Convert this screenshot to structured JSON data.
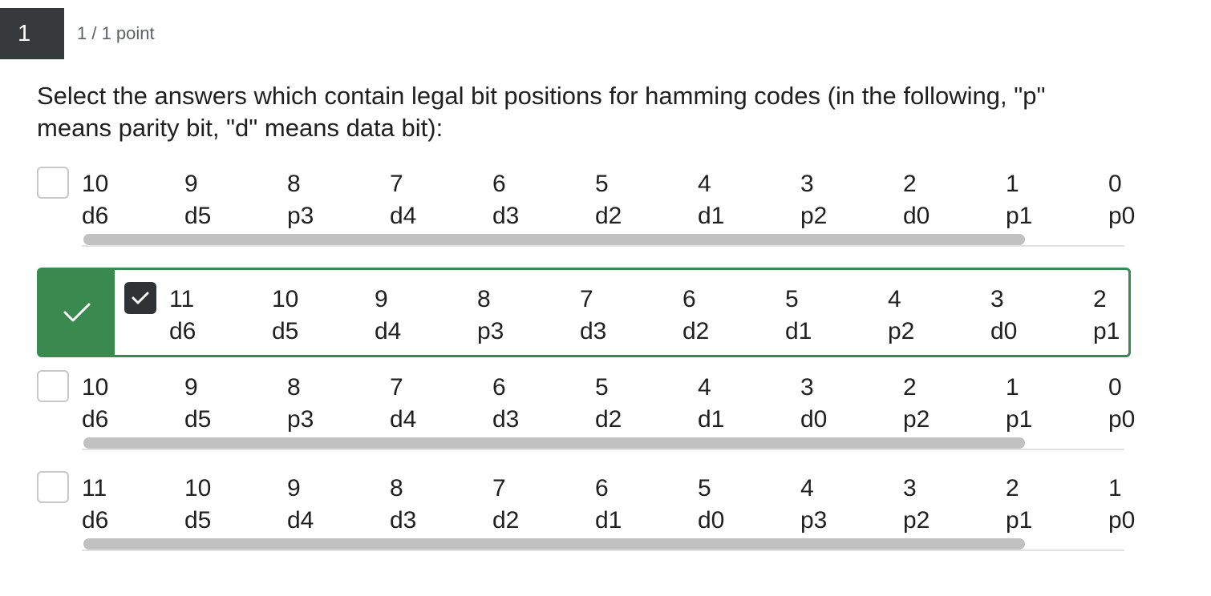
{
  "question": {
    "number": "1",
    "points": "1 / 1 point",
    "prompt": "Select the answers which contain legal bit positions for hamming codes (in the following, \"p\" means parity bit, \"d\" means data bit):"
  },
  "options": [
    {
      "checked": false,
      "correct": false,
      "positions": [
        "10",
        "9",
        "8",
        "7",
        "6",
        "5",
        "4",
        "3",
        "2",
        "1",
        "0"
      ],
      "bits": [
        "d6",
        "d5",
        "p3",
        "d4",
        "d3",
        "d2",
        "d1",
        "p2",
        "d0",
        "p1",
        "p0"
      ]
    },
    {
      "checked": true,
      "correct": true,
      "positions": [
        "11",
        "10",
        "9",
        "8",
        "7",
        "6",
        "5",
        "4",
        "3",
        "2"
      ],
      "bits": [
        "d6",
        "d5",
        "d4",
        "p3",
        "d3",
        "d2",
        "d1",
        "p2",
        "d0",
        "p1"
      ]
    },
    {
      "checked": false,
      "correct": false,
      "positions": [
        "10",
        "9",
        "8",
        "7",
        "6",
        "5",
        "4",
        "3",
        "2",
        "1",
        "0"
      ],
      "bits": [
        "d6",
        "d5",
        "p3",
        "d4",
        "d3",
        "d2",
        "d1",
        "d0",
        "p2",
        "p1",
        "p0"
      ]
    },
    {
      "checked": false,
      "correct": false,
      "positions": [
        "11",
        "10",
        "9",
        "8",
        "7",
        "6",
        "5",
        "4",
        "3",
        "2",
        "1"
      ],
      "bits": [
        "d6",
        "d5",
        "d4",
        "d3",
        "d2",
        "d1",
        "d0",
        "p3",
        "p2",
        "p1",
        "p0"
      ]
    }
  ],
  "icons": {
    "correct_indicator": "checkmark-icon",
    "checkbox_checked": "checkmark-icon"
  },
  "colors": {
    "correct": "#3a8a4f",
    "question_badge": "#373a3c"
  }
}
